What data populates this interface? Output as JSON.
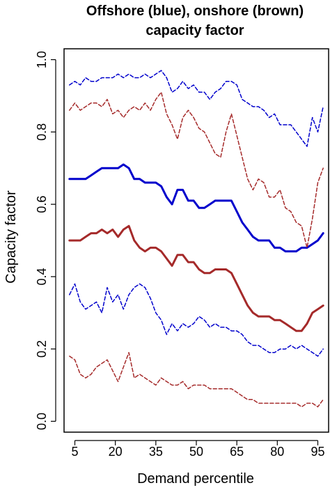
{
  "chart_data": {
    "type": "line",
    "title": "Offshore (blue), onshore (brown)",
    "subtitle": "capacity factor",
    "xlabel": "Demand percentile",
    "ylabel": "Capacity factor",
    "xlim": [
      1,
      99
    ],
    "ylim": [
      -0.03,
      1.03
    ],
    "x_ticks": [
      5,
      20,
      35,
      50,
      65,
      80,
      95
    ],
    "x_tick_labels": [
      "5",
      "20",
      "35",
      "50",
      "65",
      "80",
      "95"
    ],
    "y_ticks": [
      0.0,
      0.2,
      0.4,
      0.6,
      0.8,
      1.0
    ],
    "y_tick_labels": [
      "0.0",
      "0.2",
      "0.4",
      "0.6",
      "0.8",
      "1.0"
    ],
    "grid": false,
    "legend": "none",
    "x": [
      3,
      5,
      7,
      9,
      11,
      13,
      15,
      17,
      19,
      21,
      23,
      25,
      27,
      29,
      31,
      33,
      35,
      37,
      39,
      41,
      43,
      45,
      47,
      49,
      51,
      53,
      55,
      57,
      59,
      61,
      63,
      65,
      67,
      69,
      71,
      73,
      75,
      77,
      79,
      81,
      83,
      85,
      87,
      89,
      91,
      93,
      95,
      97
    ],
    "series": [
      {
        "color": "#0000cc",
        "style": "solid",
        "width": 3,
        "values": [
          0.67,
          0.67,
          0.67,
          0.67,
          0.68,
          0.69,
          0.7,
          0.7,
          0.7,
          0.7,
          0.71,
          0.7,
          0.67,
          0.67,
          0.66,
          0.66,
          0.66,
          0.65,
          0.62,
          0.6,
          0.64,
          0.64,
          0.61,
          0.61,
          0.59,
          0.59,
          0.6,
          0.61,
          0.61,
          0.61,
          0.61,
          0.58,
          0.55,
          0.53,
          0.51,
          0.5,
          0.5,
          0.5,
          0.48,
          0.48,
          0.47,
          0.47,
          0.47,
          0.48,
          0.48,
          0.49,
          0.5,
          0.52
        ]
      },
      {
        "color": "#a52a2a",
        "style": "solid",
        "width": 3,
        "values": [
          0.5,
          0.5,
          0.5,
          0.51,
          0.52,
          0.52,
          0.53,
          0.52,
          0.53,
          0.51,
          0.53,
          0.54,
          0.5,
          0.48,
          0.47,
          0.48,
          0.48,
          0.47,
          0.45,
          0.43,
          0.46,
          0.46,
          0.44,
          0.44,
          0.42,
          0.41,
          0.41,
          0.42,
          0.42,
          0.42,
          0.41,
          0.38,
          0.35,
          0.32,
          0.3,
          0.29,
          0.29,
          0.29,
          0.28,
          0.28,
          0.27,
          0.26,
          0.25,
          0.25,
          0.27,
          0.3,
          0.31,
          0.32
        ]
      },
      {
        "color": "#0000cc",
        "style": "dashed",
        "width": 1.5,
        "values": [
          0.93,
          0.94,
          0.93,
          0.95,
          0.94,
          0.94,
          0.95,
          0.95,
          0.95,
          0.96,
          0.95,
          0.96,
          0.95,
          0.95,
          0.96,
          0.95,
          0.96,
          0.97,
          0.95,
          0.91,
          0.92,
          0.94,
          0.92,
          0.93,
          0.91,
          0.91,
          0.89,
          0.91,
          0.92,
          0.94,
          0.94,
          0.93,
          0.89,
          0.88,
          0.87,
          0.87,
          0.86,
          0.84,
          0.85,
          0.82,
          0.82,
          0.82,
          0.8,
          0.78,
          0.76,
          0.84,
          0.8,
          0.87
        ]
      },
      {
        "color": "#a52a2a",
        "style": "dashed",
        "width": 1.5,
        "values": [
          0.86,
          0.88,
          0.86,
          0.87,
          0.88,
          0.88,
          0.87,
          0.89,
          0.85,
          0.86,
          0.84,
          0.86,
          0.87,
          0.86,
          0.88,
          0.86,
          0.89,
          0.91,
          0.85,
          0.82,
          0.78,
          0.84,
          0.86,
          0.84,
          0.81,
          0.8,
          0.77,
          0.74,
          0.73,
          0.8,
          0.85,
          0.79,
          0.73,
          0.67,
          0.64,
          0.67,
          0.66,
          0.62,
          0.62,
          0.64,
          0.59,
          0.58,
          0.55,
          0.54,
          0.48,
          0.56,
          0.66,
          0.7
        ]
      },
      {
        "color": "#0000cc",
        "style": "dashed",
        "width": 1.5,
        "values": [
          0.35,
          0.38,
          0.33,
          0.31,
          0.32,
          0.33,
          0.3,
          0.37,
          0.33,
          0.35,
          0.31,
          0.35,
          0.37,
          0.38,
          0.37,
          0.34,
          0.3,
          0.28,
          0.24,
          0.27,
          0.25,
          0.27,
          0.26,
          0.27,
          0.29,
          0.28,
          0.26,
          0.27,
          0.26,
          0.26,
          0.25,
          0.25,
          0.24,
          0.22,
          0.21,
          0.21,
          0.2,
          0.19,
          0.19,
          0.2,
          0.2,
          0.21,
          0.2,
          0.21,
          0.2,
          0.19,
          0.18,
          0.2
        ]
      },
      {
        "color": "#a52a2a",
        "style": "dashed",
        "width": 1.5,
        "values": [
          0.18,
          0.17,
          0.13,
          0.12,
          0.13,
          0.15,
          0.16,
          0.17,
          0.14,
          0.11,
          0.15,
          0.19,
          0.12,
          0.13,
          0.12,
          0.11,
          0.1,
          0.12,
          0.11,
          0.1,
          0.1,
          0.11,
          0.09,
          0.1,
          0.1,
          0.1,
          0.09,
          0.09,
          0.09,
          0.09,
          0.09,
          0.08,
          0.07,
          0.06,
          0.06,
          0.05,
          0.05,
          0.05,
          0.05,
          0.05,
          0.05,
          0.05,
          0.05,
          0.04,
          0.05,
          0.05,
          0.04,
          0.06
        ]
      }
    ]
  }
}
